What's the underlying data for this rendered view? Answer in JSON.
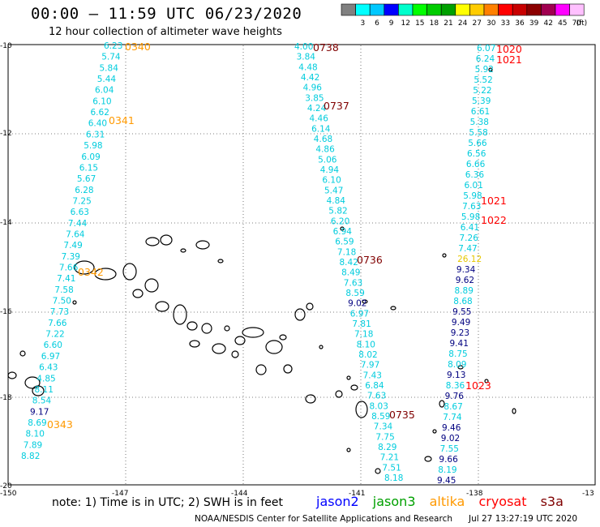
{
  "title": "00:00 – 11:59 UTC 06/23/2020",
  "subtitle": "12 hour collection of altimeter wave heights",
  "legend": {
    "unit": "(ft)",
    "steps": [
      {
        "value": "",
        "color": "#808080"
      },
      {
        "value": "3",
        "color": "#00ffff"
      },
      {
        "value": "6",
        "color": "#00c8ff"
      },
      {
        "value": "9",
        "color": "#0000ff"
      },
      {
        "value": "12",
        "color": "#00ffcc"
      },
      {
        "value": "15",
        "color": "#00ff00"
      },
      {
        "value": "18",
        "color": "#00cc00"
      },
      {
        "value": "21",
        "color": "#00a000"
      },
      {
        "value": "24",
        "color": "#ffff00"
      },
      {
        "value": "27",
        "color": "#ffcc00"
      },
      {
        "value": "30",
        "color": "#ff8000"
      },
      {
        "value": "33",
        "color": "#ff0000"
      },
      {
        "value": "36",
        "color": "#c80000"
      },
      {
        "value": "39",
        "color": "#8b0000"
      },
      {
        "value": "42",
        "color": "#a00050"
      },
      {
        "value": "45",
        "color": "#ff00ff"
      },
      {
        "value": "70",
        "color": "#ffc0ff"
      }
    ]
  },
  "axes": {
    "lon_labels": [
      "-150",
      "-147",
      "-144",
      "-141",
      "-138",
      "-13"
    ],
    "lat_labels": [
      "-10",
      "-12",
      "-14",
      "-16",
      "-18",
      "-20"
    ]
  },
  "colors": {
    "cyan": "#00ccdd",
    "navy": "#000080",
    "yellow": "#e6c800",
    "orange": "#ff9900",
    "darkred": "#800000",
    "red": "#ff0000"
  },
  "tracks": [
    {
      "name": "altika-0340",
      "values": [
        {
          "t": "6.23",
          "c": "cyan"
        },
        {
          "t": "5.74",
          "c": "cyan"
        },
        {
          "t": "5.84",
          "c": "cyan"
        },
        {
          "t": "5.44",
          "c": "cyan"
        },
        {
          "t": "6.04",
          "c": "cyan"
        },
        {
          "t": "6.10",
          "c": "cyan"
        },
        {
          "t": "6.62",
          "c": "cyan"
        },
        {
          "t": "6.40",
          "c": "cyan"
        },
        {
          "t": "6.31",
          "c": "cyan"
        },
        {
          "t": "5.98",
          "c": "cyan"
        },
        {
          "t": "6.09",
          "c": "cyan"
        },
        {
          "t": "6.15",
          "c": "cyan"
        },
        {
          "t": "5.67",
          "c": "cyan"
        },
        {
          "t": "6.28",
          "c": "cyan"
        },
        {
          "t": "7.25",
          "c": "cyan"
        },
        {
          "t": "6.63",
          "c": "cyan"
        },
        {
          "t": "7.44",
          "c": "cyan"
        },
        {
          "t": "7.64",
          "c": "cyan"
        },
        {
          "t": "7.49",
          "c": "cyan"
        },
        {
          "t": "7.39",
          "c": "cyan"
        },
        {
          "t": "7.66",
          "c": "cyan"
        },
        {
          "t": "7.41",
          "c": "cyan"
        },
        {
          "t": "7.58",
          "c": "cyan"
        },
        {
          "t": "7.50",
          "c": "cyan"
        },
        {
          "t": "7.73",
          "c": "cyan"
        },
        {
          "t": "7.66",
          "c": "cyan"
        },
        {
          "t": "7.22",
          "c": "cyan"
        },
        {
          "t": "6.60",
          "c": "cyan"
        },
        {
          "t": "6.97",
          "c": "cyan"
        },
        {
          "t": "6.43",
          "c": "cyan"
        },
        {
          "t": "4.85",
          "c": "cyan"
        },
        {
          "t": "8.11",
          "c": "cyan"
        },
        {
          "t": "8.54",
          "c": "cyan"
        },
        {
          "t": "9.17",
          "c": "navy"
        },
        {
          "t": "8.69",
          "c": "cyan"
        },
        {
          "t": "8.10",
          "c": "cyan"
        },
        {
          "t": "7.89",
          "c": "cyan"
        },
        {
          "t": "8.82",
          "c": "cyan"
        }
      ],
      "times": [
        {
          "t": "0340",
          "c": "orange"
        },
        {
          "t": "0341",
          "c": "orange"
        },
        {
          "t": "0342",
          "c": "orange"
        },
        {
          "t": "0343",
          "c": "orange"
        }
      ]
    },
    {
      "name": "cryosat-0735",
      "values": [
        {
          "t": "4.00",
          "c": "cyan"
        },
        {
          "t": "3.84",
          "c": "cyan"
        },
        {
          "t": "4.48",
          "c": "cyan"
        },
        {
          "t": "4.42",
          "c": "cyan"
        },
        {
          "t": "4.96",
          "c": "cyan"
        },
        {
          "t": "3.85",
          "c": "cyan"
        },
        {
          "t": "4.24",
          "c": "cyan"
        },
        {
          "t": "4.46",
          "c": "cyan"
        },
        {
          "t": "6.14",
          "c": "cyan"
        },
        {
          "t": "4.68",
          "c": "cyan"
        },
        {
          "t": "4.86",
          "c": "cyan"
        },
        {
          "t": "5.06",
          "c": "cyan"
        },
        {
          "t": "4.94",
          "c": "cyan"
        },
        {
          "t": "6.10",
          "c": "cyan"
        },
        {
          "t": "5.47",
          "c": "cyan"
        },
        {
          "t": "4.84",
          "c": "cyan"
        },
        {
          "t": "5.82",
          "c": "cyan"
        },
        {
          "t": "6.20",
          "c": "cyan"
        },
        {
          "t": "6.94",
          "c": "cyan"
        },
        {
          "t": "6.59",
          "c": "cyan"
        },
        {
          "t": "7.18",
          "c": "cyan"
        },
        {
          "t": "8.42",
          "c": "cyan"
        },
        {
          "t": "8.49",
          "c": "cyan"
        },
        {
          "t": "7.63",
          "c": "cyan"
        },
        {
          "t": "8.59",
          "c": "cyan"
        },
        {
          "t": "9.02",
          "c": "navy"
        },
        {
          "t": "6.97",
          "c": "cyan"
        },
        {
          "t": "7.81",
          "c": "cyan"
        },
        {
          "t": "7.18",
          "c": "cyan"
        },
        {
          "t": "8.10",
          "c": "cyan"
        },
        {
          "t": "8.02",
          "c": "cyan"
        },
        {
          "t": "7.97",
          "c": "cyan"
        },
        {
          "t": "7.43",
          "c": "cyan"
        },
        {
          "t": "6.84",
          "c": "cyan"
        },
        {
          "t": "7.63",
          "c": "cyan"
        },
        {
          "t": "8.03",
          "c": "cyan"
        },
        {
          "t": "8.59",
          "c": "cyan"
        },
        {
          "t": "7.34",
          "c": "cyan"
        },
        {
          "t": "7.75",
          "c": "cyan"
        },
        {
          "t": "8.29",
          "c": "cyan"
        },
        {
          "t": "7.21",
          "c": "cyan"
        },
        {
          "t": "7.51",
          "c": "cyan"
        },
        {
          "t": "8.18",
          "c": "cyan"
        }
      ],
      "times": [
        {
          "t": "0738",
          "c": "darkred"
        },
        {
          "t": "0737",
          "c": "darkred"
        },
        {
          "t": "0736",
          "c": "darkred"
        },
        {
          "t": "0735",
          "c": "darkred"
        }
      ]
    },
    {
      "name": "s3a-1020",
      "values": [
        {
          "t": "6.07",
          "c": "cyan"
        },
        {
          "t": "6.24",
          "c": "cyan"
        },
        {
          "t": "5.92",
          "c": "cyan"
        },
        {
          "t": "5.52",
          "c": "cyan"
        },
        {
          "t": "5.22",
          "c": "cyan"
        },
        {
          "t": "5.39",
          "c": "cyan"
        },
        {
          "t": "6.61",
          "c": "cyan"
        },
        {
          "t": "5.38",
          "c": "cyan"
        },
        {
          "t": "5.58",
          "c": "cyan"
        },
        {
          "t": "5.66",
          "c": "cyan"
        },
        {
          "t": "6.56",
          "c": "cyan"
        },
        {
          "t": "6.66",
          "c": "cyan"
        },
        {
          "t": "6.36",
          "c": "cyan"
        },
        {
          "t": "6.01",
          "c": "cyan"
        },
        {
          "t": "5.98",
          "c": "cyan"
        },
        {
          "t": "7.63",
          "c": "cyan"
        },
        {
          "t": "5.98",
          "c": "cyan"
        },
        {
          "t": "6.41",
          "c": "cyan"
        },
        {
          "t": "7.26",
          "c": "cyan"
        },
        {
          "t": "7.47",
          "c": "cyan"
        },
        {
          "t": "26.12",
          "c": "yellow"
        },
        {
          "t": "9.34",
          "c": "navy"
        },
        {
          "t": "9.62",
          "c": "navy"
        },
        {
          "t": "8.89",
          "c": "cyan"
        },
        {
          "t": "8.68",
          "c": "cyan"
        },
        {
          "t": "9.55",
          "c": "navy"
        },
        {
          "t": "9.49",
          "c": "navy"
        },
        {
          "t": "9.23",
          "c": "navy"
        },
        {
          "t": "9.41",
          "c": "navy"
        },
        {
          "t": "8.75",
          "c": "cyan"
        },
        {
          "t": "8.09",
          "c": "cyan"
        },
        {
          "t": "9.13",
          "c": "navy"
        },
        {
          "t": "8.36",
          "c": "cyan"
        },
        {
          "t": "9.76",
          "c": "navy"
        },
        {
          "t": "8.67",
          "c": "cyan"
        },
        {
          "t": "7.74",
          "c": "cyan"
        },
        {
          "t": "9.46",
          "c": "navy"
        },
        {
          "t": "9.02",
          "c": "navy"
        },
        {
          "t": "7.55",
          "c": "cyan"
        },
        {
          "t": "9.66",
          "c": "navy"
        },
        {
          "t": "8.19",
          "c": "cyan"
        },
        {
          "t": "9.45",
          "c": "navy"
        }
      ],
      "times": [
        {
          "t": "1020",
          "c": "red"
        },
        {
          "t": "1021",
          "c": "red"
        },
        {
          "t": "1021",
          "c": "red"
        },
        {
          "t": "1022",
          "c": "red"
        },
        {
          "t": "1023",
          "c": "red"
        }
      ]
    }
  ],
  "note": "note: 1) Time is in UTC; 2) SWH is in feet",
  "satellites": [
    {
      "name": "jason2",
      "color": "#0000ff"
    },
    {
      "name": "jason3",
      "color": "#00a000"
    },
    {
      "name": "altika",
      "color": "#ff9900"
    },
    {
      "name": "cryosat",
      "color": "#ff0000"
    },
    {
      "name": "s3a",
      "color": "#800000"
    }
  ],
  "footer": {
    "credit": "NOAA/NESDIS Center for Satellite Applications and Research",
    "timestamp": "Jul 27 13:27:19 UTC 2020"
  }
}
